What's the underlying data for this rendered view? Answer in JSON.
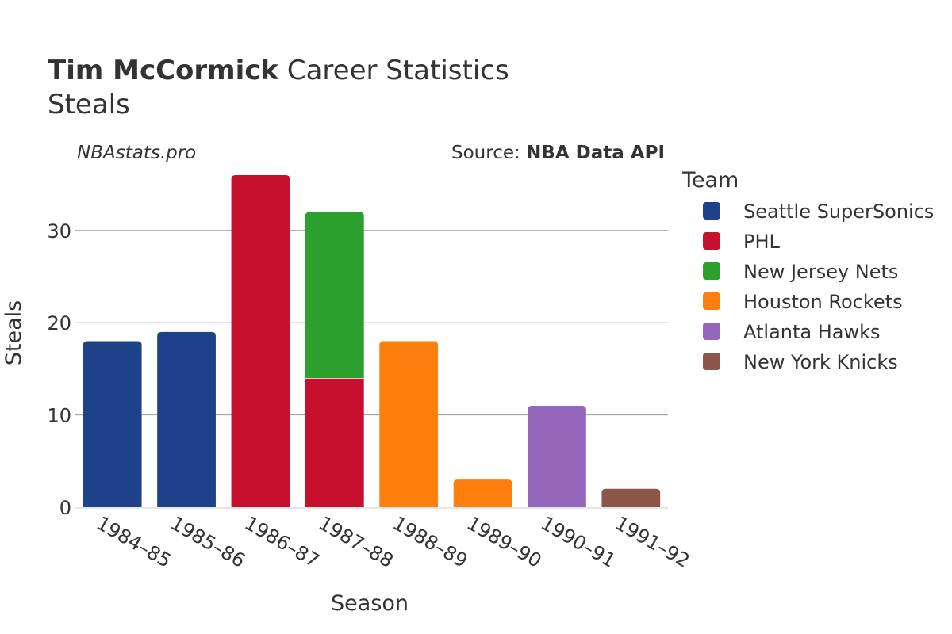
{
  "title": {
    "player": "Tim McCormick",
    "suffix": " Career Statistics",
    "stat": "Steals"
  },
  "watermark": "NBAstats.pro",
  "source": {
    "prefix": "Source: ",
    "name": "NBA Data API"
  },
  "colors": {
    "Seattle SuperSonics": "#1d428a",
    "PHL": "#c8102e",
    "New Jersey Nets": "#2ca02c",
    "Houston Rockets": "#ff7f0e",
    "Atlanta Hawks": "#9467bd",
    "New York Knicks": "#8c564b"
  },
  "chart_data": {
    "type": "bar",
    "stacked": true,
    "xlabel": "Season",
    "ylabel": "Steals",
    "ylim": [
      0,
      37
    ],
    "yticks": [
      0,
      10,
      20,
      30
    ],
    "grid": true,
    "legend_title": "Team",
    "legend_position": "right",
    "categories": [
      "1984–85",
      "1985–86",
      "1986–87",
      "1987–88",
      "1988–89",
      "1989–90",
      "1990–91",
      "1991–92"
    ],
    "series": [
      {
        "name": "Seattle SuperSonics",
        "values": [
          18,
          19,
          0,
          0,
          0,
          0,
          0,
          0
        ]
      },
      {
        "name": "PHL",
        "values": [
          0,
          0,
          36,
          14,
          0,
          0,
          0,
          0
        ]
      },
      {
        "name": "New Jersey Nets",
        "values": [
          0,
          0,
          0,
          18,
          0,
          0,
          0,
          0
        ]
      },
      {
        "name": "Houston Rockets",
        "values": [
          0,
          0,
          0,
          0,
          18,
          3,
          0,
          0
        ]
      },
      {
        "name": "Atlanta Hawks",
        "values": [
          0,
          0,
          0,
          0,
          0,
          0,
          11,
          0
        ]
      },
      {
        "name": "New York Knicks",
        "values": [
          0,
          0,
          0,
          0,
          0,
          0,
          0,
          2
        ]
      }
    ]
  }
}
